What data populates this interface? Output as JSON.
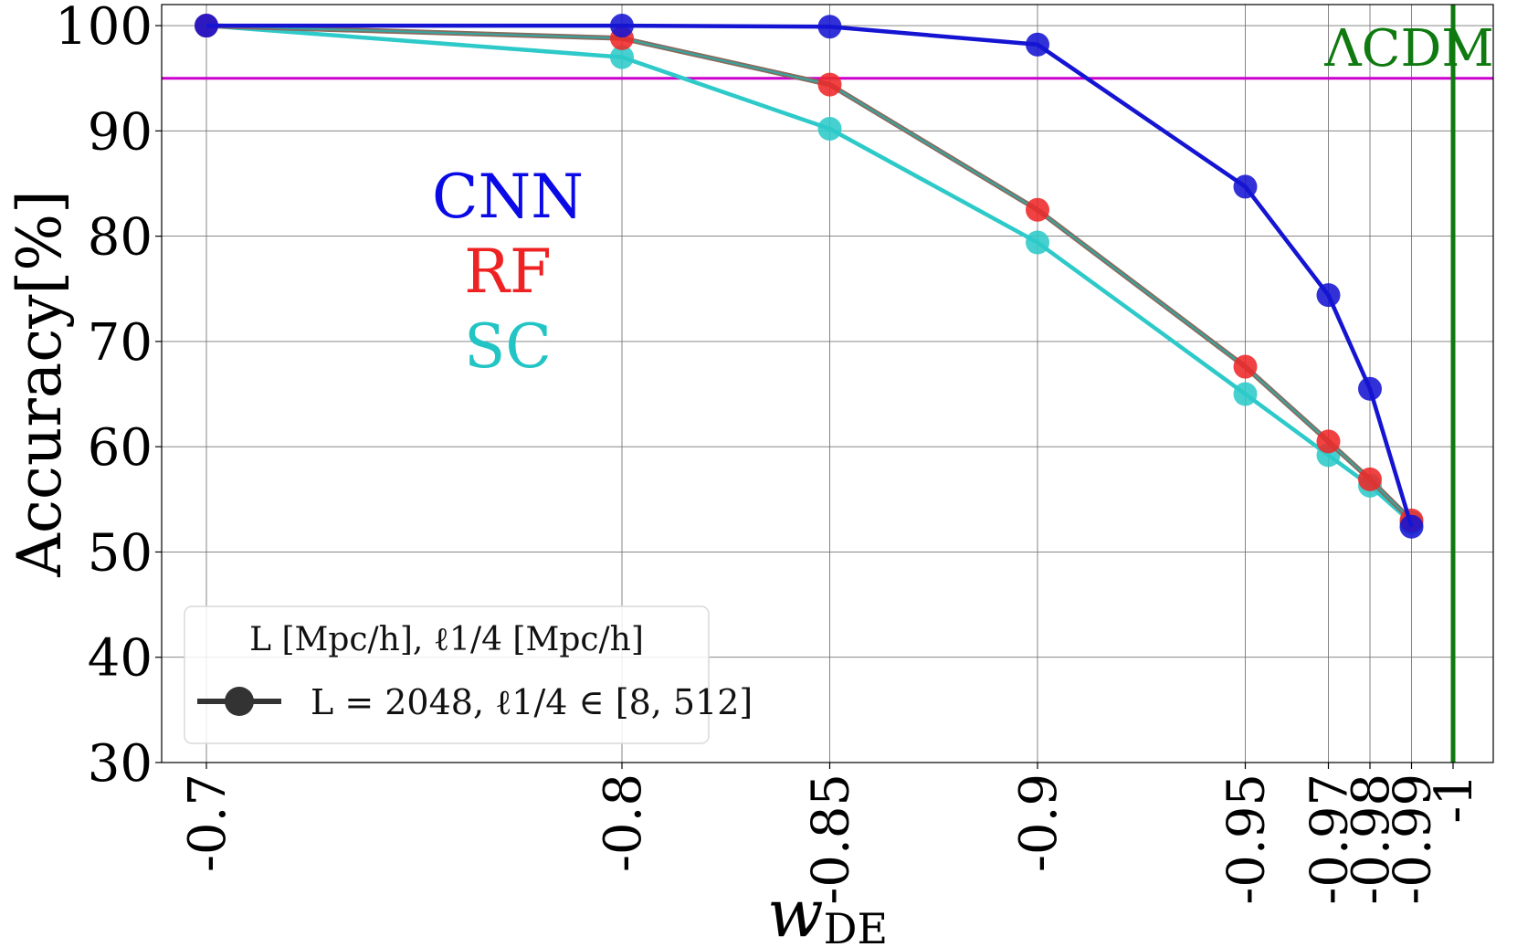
{
  "chart_data": {
    "type": "line",
    "xlabel_main": "w",
    "xlabel_sub": "DE",
    "ylabel": "Accuracy[%]",
    "ylim": [
      30,
      102
    ],
    "yticks": [
      30,
      40,
      50,
      60,
      70,
      80,
      90,
      100
    ],
    "x_positions": [
      0,
      4,
      6,
      8,
      10,
      10.8,
      11.2,
      11.6,
      12
    ],
    "x_labels": [
      "-0.7",
      "-0.8",
      "-0.85",
      "-0.9",
      "-0.95",
      "-0.97",
      "-0.98",
      "-0.99",
      "-1"
    ],
    "grid": true,
    "series": [
      {
        "name": "CNN",
        "color": "#1414d2",
        "values": [
          100,
          100,
          99.9,
          98.2,
          84.7,
          74.4,
          65.5,
          52.4,
          null
        ]
      },
      {
        "name": "RF",
        "color": "#ee2828",
        "values": [
          100,
          98.8,
          94.4,
          82.5,
          67.6,
          60.5,
          56.9,
          53.0,
          null
        ]
      },
      {
        "name": "SC",
        "color": "#2ec9c9",
        "values": [
          100,
          97.0,
          90.2,
          79.4,
          65.0,
          59.2,
          56.3,
          52.8,
          null
        ]
      }
    ],
    "hline": {
      "y": 95,
      "color": "#cc00cc"
    },
    "vline": {
      "x_label": "-1",
      "color": "#0f7a0f",
      "label": "ΛCDM"
    },
    "legend": {
      "position": "bottom-left",
      "title": "L [Mpc/h], ℓ1/4 [Mpc/h]",
      "entry": "L = 2048, ℓ1/4 ∈ [8, 512]"
    },
    "annotations": [
      "CNN",
      "RF",
      "SC"
    ]
  }
}
